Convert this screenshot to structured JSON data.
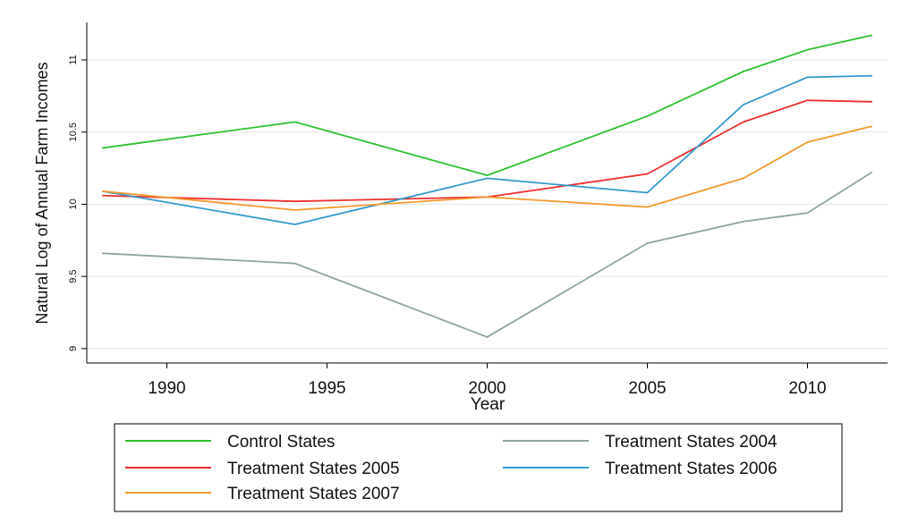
{
  "chart_data": {
    "type": "line",
    "title": "",
    "xlabel": "Year",
    "ylabel": "Natural Log of Annual Farm Incomes",
    "x": [
      1988,
      1994,
      2000,
      2005,
      2008,
      2010,
      2012
    ],
    "xticks": [
      "1990",
      "1995",
      "2000",
      "2005",
      "2010"
    ],
    "yticks": [
      "9",
      "9.5",
      "10",
      "10.5",
      "11"
    ],
    "xlim": [
      1987.5,
      2012.5
    ],
    "ylim": [
      8.9,
      11.26
    ],
    "grid": "horizontal",
    "legend_position": "bottom",
    "series": [
      {
        "name": "Control States",
        "color": "#2ec12e",
        "values": [
          10.39,
          10.57,
          10.2,
          10.61,
          10.92,
          11.07,
          11.17
        ]
      },
      {
        "name": "Treatment States 2004",
        "color": "#8ea59c",
        "values": [
          9.66,
          9.59,
          9.08,
          9.73,
          9.88,
          9.94,
          10.22
        ]
      },
      {
        "name": "Treatment States 2005",
        "color": "#ee2e2e",
        "values": [
          10.06,
          10.02,
          10.05,
          10.21,
          10.57,
          10.72,
          10.71
        ]
      },
      {
        "name": "Treatment States 2006",
        "color": "#3399cc",
        "values": [
          10.09,
          9.86,
          10.18,
          10.08,
          10.69,
          10.88,
          10.89
        ]
      },
      {
        "name": "Treatment States 2007",
        "color": "#f29a2e",
        "values": [
          10.09,
          9.96,
          10.05,
          9.98,
          10.18,
          10.43,
          10.54
        ]
      }
    ]
  }
}
